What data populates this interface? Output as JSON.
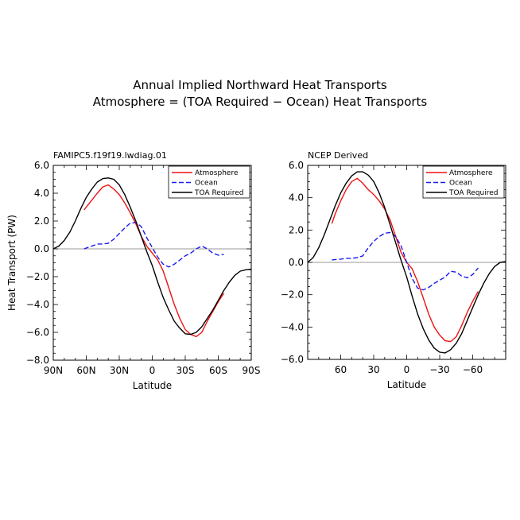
{
  "figure": {
    "title": "Annual Implied Northward Heat Transports",
    "subtitle": "Atmosphere = (TOA Required − Ocean) Heat Transports"
  },
  "colors": {
    "Atmosphere": "#ee1111",
    "Ocean": "#1a1aee",
    "TOA Required": "#000000",
    "zero_line": "#999999"
  },
  "chart_data": [
    {
      "type": "line",
      "title": "FAMIPC5.f19f19.lwdiag.01",
      "xlabel": "Latitude",
      "ylabel": "Heat Transport (PW)",
      "xlim": [
        90,
        -90
      ],
      "ylim": [
        -8,
        6
      ],
      "xticks": [
        {
          "v": 90,
          "label": "90N"
        },
        {
          "v": 60,
          "label": "60N"
        },
        {
          "v": 30,
          "label": "30N"
        },
        {
          "v": 0,
          "label": "0"
        },
        {
          "v": -30,
          "label": "30S"
        },
        {
          "v": -60,
          "label": "60S"
        },
        {
          "v": -90,
          "label": "90S"
        }
      ],
      "yticks": [
        {
          "v": 6,
          "label": "6.0"
        },
        {
          "v": 4,
          "label": "4.0"
        },
        {
          "v": 2,
          "label": "2.0"
        },
        {
          "v": 0,
          "label": "0.0"
        },
        {
          "v": -2,
          "label": "−2.0"
        },
        {
          "v": -4,
          "label": "−4.0"
        },
        {
          "v": -6,
          "label": "−6.0"
        },
        {
          "v": -8,
          "label": "−8.0"
        }
      ],
      "series": [
        {
          "name": "Atmosphere",
          "dash": "",
          "x": [
            62,
            55,
            50,
            45,
            40,
            35,
            30,
            25,
            20,
            15,
            10,
            5,
            0,
            -5,
            -10,
            -15,
            -20,
            -25,
            -30,
            -35,
            -40,
            -45,
            -50,
            -55,
            -60,
            -65
          ],
          "y": [
            2.8,
            3.5,
            4.0,
            4.45,
            4.6,
            4.3,
            3.9,
            3.3,
            2.6,
            1.8,
            0.9,
            0.2,
            -0.3,
            -0.8,
            -1.6,
            -2.8,
            -4.0,
            -5.0,
            -5.8,
            -6.15,
            -6.3,
            -6.0,
            -5.2,
            -4.5,
            -3.8,
            -3.2
          ]
        },
        {
          "name": "Ocean",
          "dash": "6,3",
          "x": [
            62,
            55,
            50,
            45,
            40,
            35,
            30,
            25,
            20,
            15,
            10,
            5,
            0,
            -5,
            -10,
            -15,
            -20,
            -25,
            -30,
            -35,
            -40,
            -45,
            -50,
            -55,
            -60,
            -65
          ],
          "y": [
            0.0,
            0.2,
            0.35,
            0.35,
            0.4,
            0.7,
            1.1,
            1.5,
            1.85,
            1.9,
            1.6,
            0.8,
            0.1,
            -0.6,
            -1.1,
            -1.3,
            -1.1,
            -0.8,
            -0.5,
            -0.3,
            0.0,
            0.2,
            0.0,
            -0.3,
            -0.45,
            -0.4
          ]
        },
        {
          "name": "TOA Required",
          "dash": "",
          "x": [
            90,
            85,
            80,
            75,
            70,
            65,
            60,
            55,
            50,
            45,
            40,
            35,
            30,
            25,
            20,
            15,
            10,
            5,
            0,
            -5,
            -10,
            -15,
            -20,
            -25,
            -30,
            -35,
            -40,
            -45,
            -50,
            -55,
            -60,
            -65,
            -70,
            -75,
            -80,
            -85,
            -90
          ],
          "y": [
            0.0,
            0.2,
            0.6,
            1.2,
            2.0,
            2.9,
            3.7,
            4.3,
            4.8,
            5.05,
            5.1,
            5.0,
            4.6,
            3.9,
            3.0,
            2.0,
            0.9,
            -0.2,
            -1.2,
            -2.4,
            -3.5,
            -4.4,
            -5.2,
            -5.7,
            -6.1,
            -6.15,
            -6.0,
            -5.6,
            -5.0,
            -4.4,
            -3.7,
            -3.0,
            -2.4,
            -1.9,
            -1.6,
            -1.5,
            -1.45
          ]
        }
      ]
    },
    {
      "type": "line",
      "title": "NCEP Derived",
      "xlabel": "Latitude",
      "ylabel": "",
      "xlim": [
        90,
        -90
      ],
      "ylim": [
        -6,
        6
      ],
      "xticks": [
        {
          "v": 60,
          "label": "60"
        },
        {
          "v": 30,
          "label": "30"
        },
        {
          "v": 0,
          "label": "0"
        },
        {
          "v": -30,
          "label": "−30"
        },
        {
          "v": -60,
          "label": "−60"
        }
      ],
      "yticks": [
        {
          "v": 6,
          "label": "6.0"
        },
        {
          "v": 4,
          "label": "4.0"
        },
        {
          "v": 2,
          "label": "2.0"
        },
        {
          "v": 0,
          "label": "0.0"
        },
        {
          "v": -2,
          "label": "−2.0"
        },
        {
          "v": -4,
          "label": "−4.0"
        },
        {
          "v": -6,
          "label": "−6.0"
        }
      ],
      "series": [
        {
          "name": "Atmosphere",
          "dash": "",
          "x": [
            68,
            65,
            60,
            55,
            50,
            45,
            40,
            35,
            30,
            25,
            20,
            15,
            10,
            5,
            0,
            -5,
            -10,
            -15,
            -20,
            -25,
            -30,
            -35,
            -40,
            -45,
            -50,
            -55,
            -60,
            -65
          ],
          "y": [
            2.4,
            3.0,
            3.8,
            4.5,
            5.0,
            5.2,
            4.9,
            4.5,
            4.2,
            3.8,
            3.3,
            2.6,
            1.6,
            0.6,
            0.0,
            -0.4,
            -1.2,
            -2.2,
            -3.2,
            -4.0,
            -4.5,
            -4.85,
            -4.9,
            -4.6,
            -3.9,
            -3.1,
            -2.4,
            -1.8
          ]
        },
        {
          "name": "Ocean",
          "dash": "6,3",
          "x": [
            68,
            60,
            55,
            50,
            45,
            40,
            35,
            30,
            25,
            20,
            15,
            10,
            5,
            0,
            -5,
            -10,
            -15,
            -20,
            -25,
            -30,
            -35,
            -40,
            -45,
            -50,
            -55,
            -60,
            -65
          ],
          "y": [
            0.15,
            0.2,
            0.25,
            0.25,
            0.3,
            0.4,
            0.9,
            1.3,
            1.6,
            1.8,
            1.85,
            1.6,
            1.0,
            0.0,
            -1.0,
            -1.6,
            -1.7,
            -1.55,
            -1.3,
            -1.1,
            -0.9,
            -0.55,
            -0.6,
            -0.85,
            -0.95,
            -0.75,
            -0.35
          ]
        },
        {
          "name": "TOA Required",
          "dash": "",
          "x": [
            90,
            85,
            80,
            75,
            70,
            65,
            60,
            55,
            50,
            45,
            40,
            35,
            30,
            25,
            20,
            15,
            10,
            5,
            0,
            -5,
            -10,
            -15,
            -20,
            -25,
            -30,
            -35,
            -40,
            -45,
            -50,
            -55,
            -60,
            -65,
            -70,
            -75,
            -80,
            -85,
            -90
          ],
          "y": [
            0.0,
            0.3,
            0.9,
            1.7,
            2.6,
            3.5,
            4.3,
            4.9,
            5.35,
            5.6,
            5.6,
            5.4,
            5.0,
            4.3,
            3.4,
            2.3,
            1.2,
            0.1,
            -0.9,
            -2.1,
            -3.2,
            -4.1,
            -4.8,
            -5.3,
            -5.55,
            -5.6,
            -5.4,
            -5.0,
            -4.4,
            -3.6,
            -2.8,
            -2.0,
            -1.3,
            -0.7,
            -0.25,
            0.0,
            0.05
          ]
        }
      ]
    }
  ]
}
